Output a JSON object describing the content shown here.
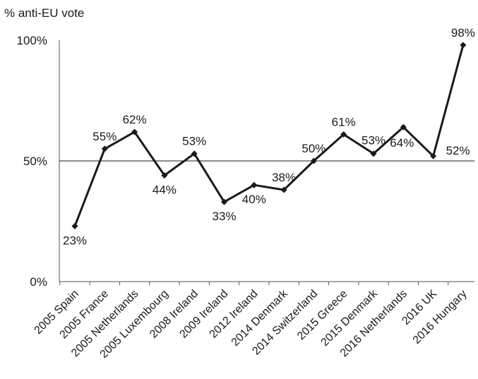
{
  "chart_data": {
    "type": "line",
    "title": "",
    "ylabel": "% anti-EU vote",
    "xlabel": "",
    "ylim": [
      0,
      100
    ],
    "yticks": [
      {
        "value": 0,
        "label": "0%"
      },
      {
        "value": 50,
        "label": "50%"
      },
      {
        "value": 100,
        "label": "100%"
      }
    ],
    "reference_line": 50,
    "grid": false,
    "legend": "none",
    "line_color": "#1a1a1a",
    "categories": [
      "2005 Spain",
      "2005 France",
      "2005 Netherlands",
      "2005 Luxembourg",
      "2008 Ireland",
      "2009 Ireland",
      "2012 Ireland",
      "2014 Denmark",
      "2014 Switzerland",
      "2015 Greece",
      "2015 Denmark",
      "2016 Netherlands",
      "2016 UK",
      "2016 Hungary"
    ],
    "series": [
      {
        "name": "",
        "values": [
          23,
          55,
          62,
          44,
          53,
          33,
          40,
          38,
          50,
          61,
          53,
          64,
          52,
          98
        ],
        "labels": [
          "23%",
          "55%",
          "62%",
          "44%",
          "53%",
          "33%",
          "40%",
          "38%",
          "50%",
          "61%",
          "53%",
          "64%",
          "52%",
          "98%"
        ]
      }
    ]
  }
}
